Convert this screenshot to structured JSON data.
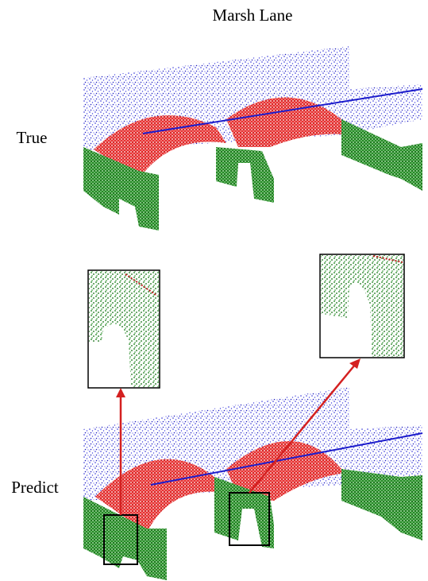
{
  "title": "Marsh Lane",
  "rows": [
    {
      "label": "True"
    },
    {
      "label": "Predict"
    }
  ]
}
